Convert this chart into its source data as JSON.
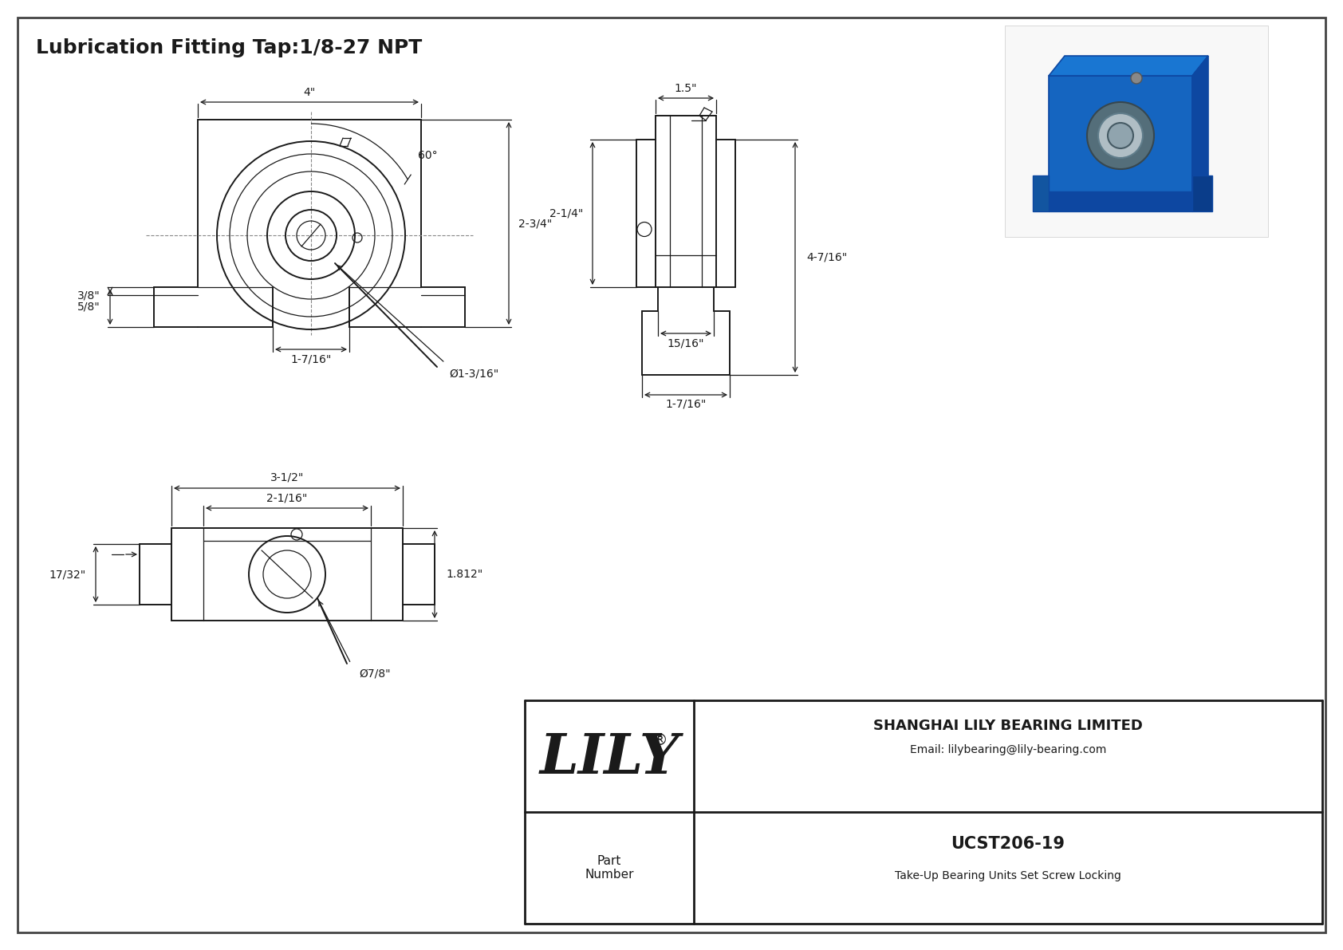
{
  "bg_color": "#ffffff",
  "line_color": "#1a1a1a",
  "title_text": "Lubrication Fitting Tap:1/8-27 NPT",
  "title_fontsize": 18,
  "part_number": "UCST206-19",
  "part_desc": "Take-Up Bearing Units Set Screw Locking",
  "company": "SHANGHAI LILY BEARING LIMITED",
  "email": "Email: lilybearing@lily-bearing.com",
  "lily_text": "LILY",
  "dims_front": {
    "width": "4\"",
    "angle": "60°",
    "height_right": "2-3/4\"",
    "height_left": "5/8\"",
    "height_bottom": "3/8\"",
    "slot_width": "1-7/16\"",
    "bore": "Ø1-3/16\""
  },
  "dims_side": {
    "width_top": "1.5\"",
    "height_upper": "2-1/4\"",
    "height_total": "4-7/16\"",
    "width_slot": "15/16\"",
    "width_base": "1-7/16\""
  },
  "dims_bottom": {
    "width_outer": "3-1/2\"",
    "width_inner": "2-1/16\"",
    "height": "1.812\"",
    "slot": "17/32\"",
    "bore": "Ø7/8\""
  }
}
